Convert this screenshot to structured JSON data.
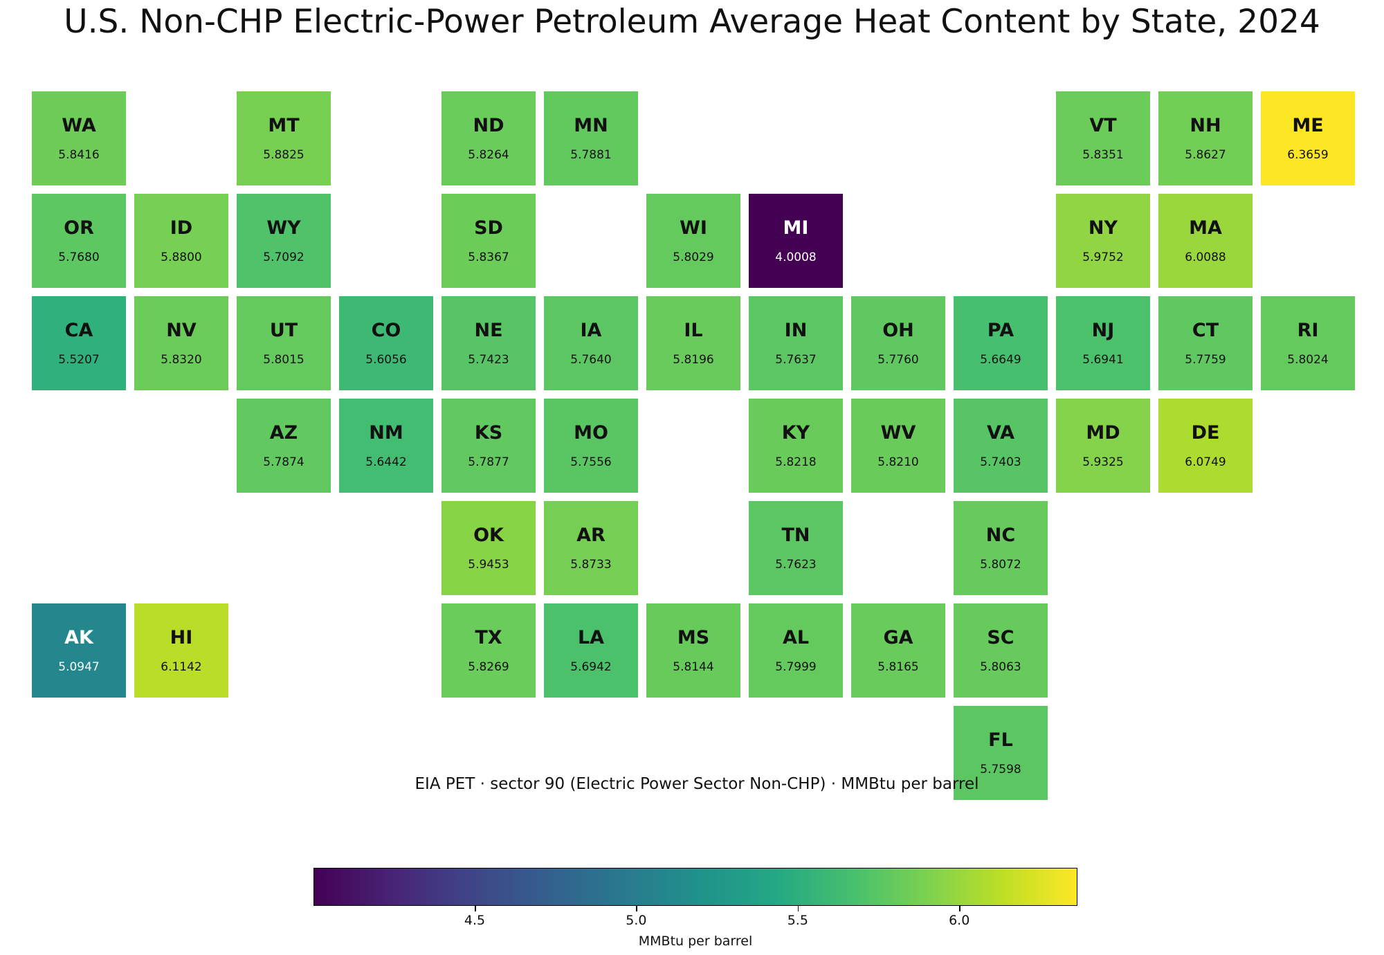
{
  "chart_data": {
    "type": "heatmap",
    "title": "U.S. Non-CHP Electric-Power Petroleum Average Heat Content by State, 2024",
    "subtitle": "EIA PET · sector 90 (Electric Power Sector Non-CHP) · MMBtu per barrel",
    "colorbar": {
      "label": "MMBtu per barrel",
      "range": [
        4.0008,
        6.3659
      ],
      "ticks": [
        "4.5",
        "5.0",
        "5.5",
        "6.0"
      ],
      "colormap": "viridis"
    },
    "states": [
      {
        "abbr": "WA",
        "value": 5.8416,
        "label": "5.8416",
        "row": 0,
        "col": 0
      },
      {
        "abbr": "MT",
        "value": 5.8825,
        "label": "5.8825",
        "row": 0,
        "col": 2
      },
      {
        "abbr": "ND",
        "value": 5.8264,
        "label": "5.8264",
        "row": 0,
        "col": 4
      },
      {
        "abbr": "MN",
        "value": 5.7881,
        "label": "5.7881",
        "row": 0,
        "col": 5
      },
      {
        "abbr": "VT",
        "value": 5.8351,
        "label": "5.8351",
        "row": 0,
        "col": 10
      },
      {
        "abbr": "NH",
        "value": 5.8627,
        "label": "5.8627",
        "row": 0,
        "col": 11
      },
      {
        "abbr": "ME",
        "value": 6.3659,
        "label": "6.3659",
        "row": 0,
        "col": 12
      },
      {
        "abbr": "OR",
        "value": 5.768,
        "label": "5.7680",
        "row": 1,
        "col": 0
      },
      {
        "abbr": "ID",
        "value": 5.88,
        "label": "5.8800",
        "row": 1,
        "col": 1
      },
      {
        "abbr": "WY",
        "value": 5.7092,
        "label": "5.7092",
        "row": 1,
        "col": 2
      },
      {
        "abbr": "SD",
        "value": 5.8367,
        "label": "5.8367",
        "row": 1,
        "col": 4
      },
      {
        "abbr": "WI",
        "value": 5.8029,
        "label": "5.8029",
        "row": 1,
        "col": 6
      },
      {
        "abbr": "MI",
        "value": 4.0008,
        "label": "4.0008",
        "row": 1,
        "col": 7
      },
      {
        "abbr": "NY",
        "value": 5.9752,
        "label": "5.9752",
        "row": 1,
        "col": 10
      },
      {
        "abbr": "MA",
        "value": 6.0088,
        "label": "6.0088",
        "row": 1,
        "col": 11
      },
      {
        "abbr": "CA",
        "value": 5.5207,
        "label": "5.5207",
        "row": 2,
        "col": 0
      },
      {
        "abbr": "NV",
        "value": 5.832,
        "label": "5.8320",
        "row": 2,
        "col": 1
      },
      {
        "abbr": "UT",
        "value": 5.8015,
        "label": "5.8015",
        "row": 2,
        "col": 2
      },
      {
        "abbr": "CO",
        "value": 5.6056,
        "label": "5.6056",
        "row": 2,
        "col": 3
      },
      {
        "abbr": "NE",
        "value": 5.7423,
        "label": "5.7423",
        "row": 2,
        "col": 4
      },
      {
        "abbr": "IA",
        "value": 5.764,
        "label": "5.7640",
        "row": 2,
        "col": 5
      },
      {
        "abbr": "IL",
        "value": 5.8196,
        "label": "5.8196",
        "row": 2,
        "col": 6
      },
      {
        "abbr": "IN",
        "value": 5.7637,
        "label": "5.7637",
        "row": 2,
        "col": 7
      },
      {
        "abbr": "OH",
        "value": 5.776,
        "label": "5.7760",
        "row": 2,
        "col": 8
      },
      {
        "abbr": "PA",
        "value": 5.6649,
        "label": "5.6649",
        "row": 2,
        "col": 9
      },
      {
        "abbr": "NJ",
        "value": 5.6941,
        "label": "5.6941",
        "row": 2,
        "col": 10
      },
      {
        "abbr": "CT",
        "value": 5.7759,
        "label": "5.7759",
        "row": 2,
        "col": 11
      },
      {
        "abbr": "RI",
        "value": 5.8024,
        "label": "5.8024",
        "row": 2,
        "col": 12
      },
      {
        "abbr": "AZ",
        "value": 5.7874,
        "label": "5.7874",
        "row": 3,
        "col": 2
      },
      {
        "abbr": "NM",
        "value": 5.6442,
        "label": "5.6442",
        "row": 3,
        "col": 3
      },
      {
        "abbr": "KS",
        "value": 5.7877,
        "label": "5.7877",
        "row": 3,
        "col": 4
      },
      {
        "abbr": "MO",
        "value": 5.7556,
        "label": "5.7556",
        "row": 3,
        "col": 5
      },
      {
        "abbr": "KY",
        "value": 5.8218,
        "label": "5.8218",
        "row": 3,
        "col": 7
      },
      {
        "abbr": "WV",
        "value": 5.821,
        "label": "5.8210",
        "row": 3,
        "col": 8
      },
      {
        "abbr": "VA",
        "value": 5.7403,
        "label": "5.7403",
        "row": 3,
        "col": 9
      },
      {
        "abbr": "MD",
        "value": 5.9325,
        "label": "5.9325",
        "row": 3,
        "col": 10
      },
      {
        "abbr": "DE",
        "value": 6.0749,
        "label": "6.0749",
        "row": 3,
        "col": 11
      },
      {
        "abbr": "OK",
        "value": 5.9453,
        "label": "5.9453",
        "row": 4,
        "col": 4
      },
      {
        "abbr": "AR",
        "value": 5.8733,
        "label": "5.8733",
        "row": 4,
        "col": 5
      },
      {
        "abbr": "TN",
        "value": 5.7623,
        "label": "5.7623",
        "row": 4,
        "col": 7
      },
      {
        "abbr": "NC",
        "value": 5.8072,
        "label": "5.8072",
        "row": 4,
        "col": 9
      },
      {
        "abbr": "AK",
        "value": 5.0947,
        "label": "5.0947",
        "row": 5,
        "col": 0
      },
      {
        "abbr": "HI",
        "value": 6.1142,
        "label": "6.1142",
        "row": 5,
        "col": 1
      },
      {
        "abbr": "TX",
        "value": 5.8269,
        "label": "5.8269",
        "row": 5,
        "col": 4
      },
      {
        "abbr": "LA",
        "value": 5.6942,
        "label": "5.6942",
        "row": 5,
        "col": 5
      },
      {
        "abbr": "MS",
        "value": 5.8144,
        "label": "5.8144",
        "row": 5,
        "col": 6
      },
      {
        "abbr": "AL",
        "value": 5.7999,
        "label": "5.7999",
        "row": 5,
        "col": 7
      },
      {
        "abbr": "GA",
        "value": 5.8165,
        "label": "5.8165",
        "row": 5,
        "col": 8
      },
      {
        "abbr": "SC",
        "value": 5.8063,
        "label": "5.8063",
        "row": 5,
        "col": 9
      },
      {
        "abbr": "FL",
        "value": 5.7598,
        "label": "5.7598",
        "row": 6,
        "col": 9
      }
    ]
  }
}
